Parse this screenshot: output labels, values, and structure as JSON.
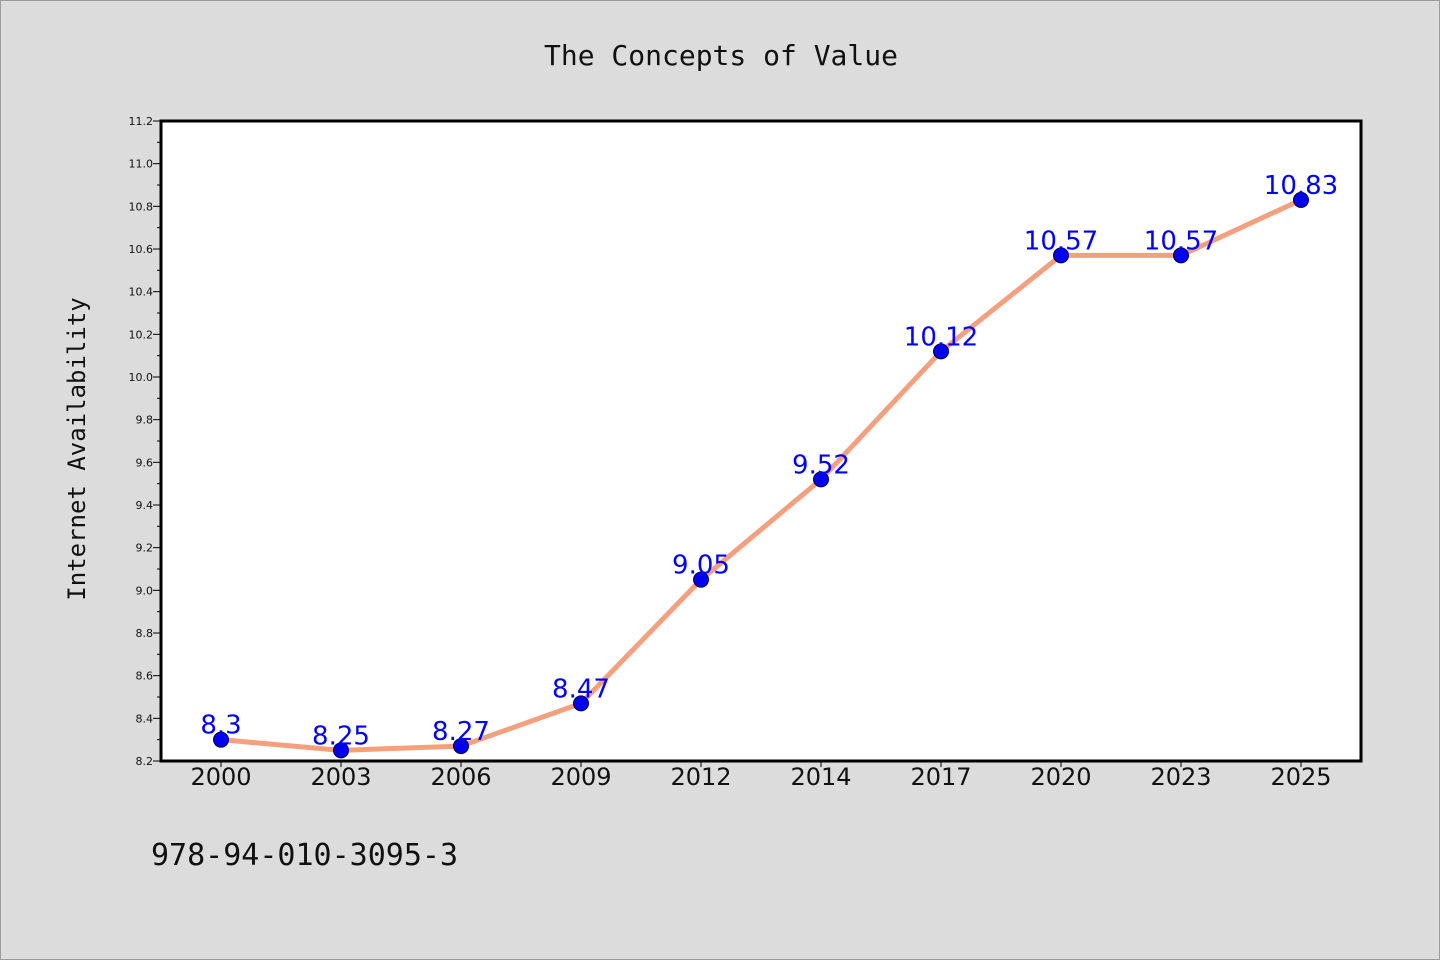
{
  "chart_data": {
    "type": "line",
    "title": "The Concepts of Value",
    "xlabel": "",
    "ylabel": "Internet Availability",
    "categories": [
      "2000",
      "2003",
      "2006",
      "2009",
      "2012",
      "2014",
      "2017",
      "2020",
      "2023",
      "2025"
    ],
    "values": [
      8.3,
      8.25,
      8.27,
      8.47,
      9.05,
      9.52,
      10.12,
      10.57,
      10.57,
      10.83
    ],
    "data_labels": [
      "8.3",
      "8.25",
      "8.27",
      "8.47",
      "9.05",
      "9.52",
      "10.12",
      "10.57",
      "10.57",
      "10.83"
    ],
    "ylim": [
      8.2,
      11.2
    ],
    "yticks": [
      8.2,
      8.4,
      8.6,
      8.8,
      9.0,
      9.2,
      9.4,
      9.6,
      9.8,
      10.0,
      10.2,
      10.4,
      10.6,
      10.8,
      11.0,
      11.2
    ],
    "ytick_labels": [
      "8.2",
      "8.4",
      "8.6",
      "8.8",
      "9.0",
      "9.2",
      "9.4",
      "9.6",
      "9.8",
      "10.0",
      "10.2",
      "10.4",
      "10.6",
      "10.8",
      "11.0",
      "11.2"
    ],
    "grid": false,
    "legend": "none",
    "footnote": "978-94-010-3095-3",
    "colors": {
      "line": "#f4a07f",
      "marker": "#0000ee",
      "label": "#0000ff",
      "figure_bg": "#dcdcdc",
      "plot_bg": "#ffffff"
    }
  }
}
